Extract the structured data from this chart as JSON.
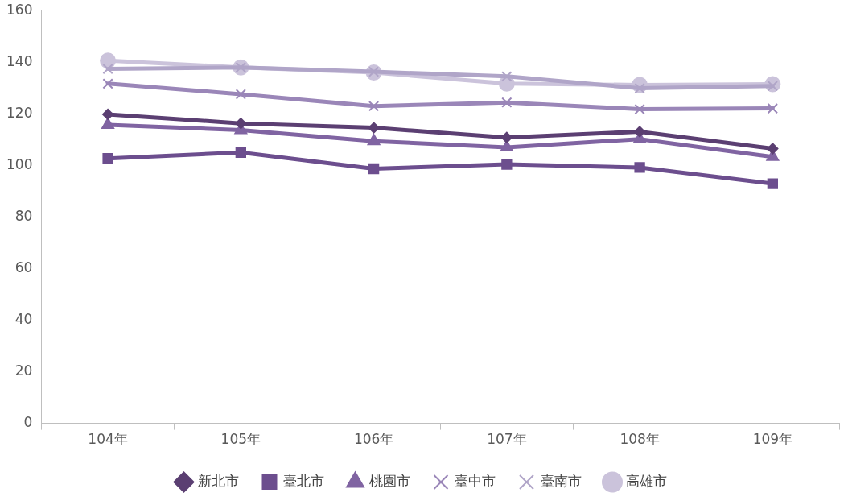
{
  "chart_data": {
    "type": "line",
    "categories": [
      "104年",
      "105年",
      "106年",
      "107年",
      "108年",
      "109年"
    ],
    "series": [
      {
        "name": "新北市",
        "color": "#5b3f72",
        "marker": "diamond",
        "values": [
          119.8,
          116.3,
          114.6,
          110.8,
          113.1,
          106.5
        ]
      },
      {
        "name": "臺北市",
        "color": "#6c4e8e",
        "marker": "square",
        "values": [
          102.7,
          105,
          98.7,
          100.4,
          99.2,
          92.9
        ]
      },
      {
        "name": "桃園市",
        "color": "#8064a2",
        "marker": "triangle",
        "values": [
          115.7,
          113.7,
          109.4,
          107,
          110.2,
          103.3
        ]
      },
      {
        "name": "臺中市",
        "color": "#9a86b8",
        "marker": "cross",
        "values": [
          131.7,
          127.6,
          123,
          124.4,
          121.8,
          122.1
        ]
      },
      {
        "name": "臺南市",
        "color": "#b0a5c8",
        "marker": "cross",
        "values": [
          137.4,
          138,
          136.3,
          134.5,
          129.9,
          130.8
        ]
      },
      {
        "name": "高雄市",
        "color": "#cbc3db",
        "marker": "circle",
        "values": [
          140.6,
          138,
          136,
          131.7,
          131.2,
          131.5
        ]
      }
    ],
    "ylim": [
      0,
      160
    ],
    "yticks": [
      0,
      20,
      40,
      60,
      80,
      100,
      120,
      140,
      160
    ],
    "grid": false,
    "legend": "bottom"
  }
}
